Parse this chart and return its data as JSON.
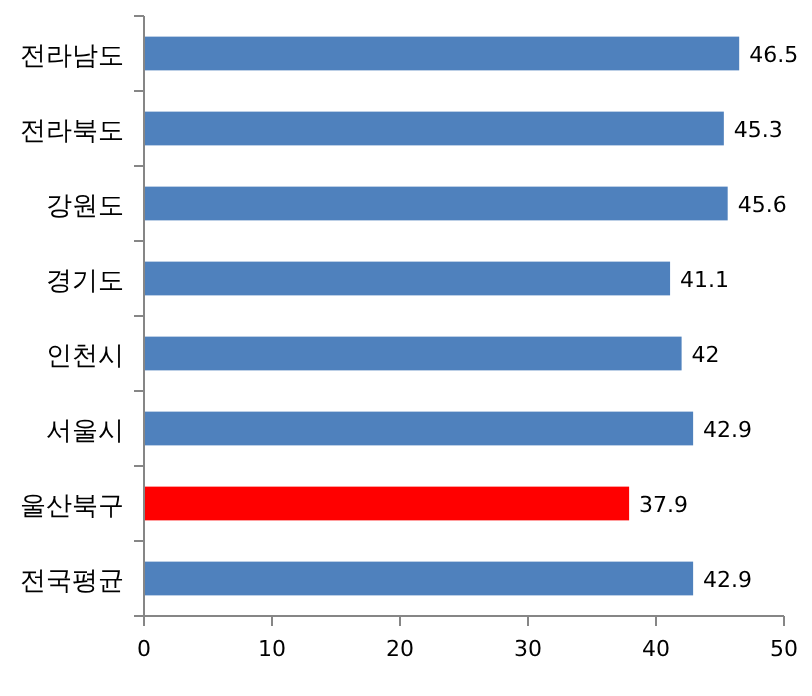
{
  "chart_data": {
    "type": "bar",
    "orientation": "horizontal",
    "categories": [
      "전라남도",
      "전라북도",
      "강원도",
      "경기도",
      "인천시",
      "서울시",
      "울산북구",
      "전국평균"
    ],
    "values": [
      46.5,
      45.3,
      45.6,
      41.1,
      42,
      42.9,
      37.9,
      42.9
    ],
    "colors": [
      "#4f81bd",
      "#4f81bd",
      "#4f81bd",
      "#4f81bd",
      "#4f81bd",
      "#4f81bd",
      "#ff0000",
      "#4f81bd"
    ],
    "xlim": [
      0,
      50
    ],
    "xticks": [
      0,
      10,
      20,
      30,
      40,
      50
    ],
    "data_labels": true
  }
}
